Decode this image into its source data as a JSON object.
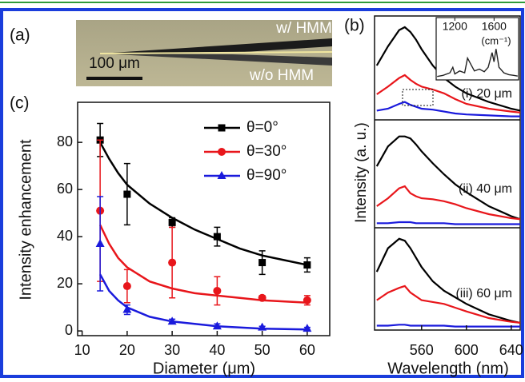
{
  "panel_a": {
    "label": "(a)",
    "top_label": "w/ HMM",
    "bottom_label": "w/o HMM",
    "scale_label": "100 μm"
  },
  "chart_data": [
    {
      "type": "spectra",
      "label": "(b)",
      "xlabel": "Wavelength (nm)",
      "ylabel": "Intensity (a. u.)",
      "xlim": [
        518,
        648
      ],
      "xticks": [
        560,
        600,
        640
      ],
      "ylim": [
        0,
        1.05
      ],
      "x": [
        520,
        530,
        540,
        545,
        550,
        555,
        560,
        570,
        580,
        590,
        600,
        620,
        640,
        648
      ],
      "panels": [
        {
          "label": "(i) 20 μm",
          "series": [
            {
              "color": "#000000",
              "values": [
                0.55,
                0.75,
                0.92,
                0.95,
                0.9,
                0.82,
                0.72,
                0.55,
                0.42,
                0.33,
                0.26,
                0.17,
                0.1,
                0.08
              ]
            },
            {
              "color": "#e8161b",
              "values": [
                0.25,
                0.33,
                0.42,
                0.45,
                0.4,
                0.36,
                0.33,
                0.3,
                0.26,
                0.2,
                0.15,
                0.1,
                0.07,
                0.06
              ]
            },
            {
              "color": "#1a1adc",
              "values": [
                0.08,
                0.1,
                0.15,
                0.17,
                0.14,
                0.12,
                0.1,
                0.09,
                0.07,
                0.05,
                0.04,
                0.03,
                0.02,
                0.02
              ]
            }
          ]
        },
        {
          "label": "(ii) 40 μm",
          "series": [
            {
              "color": "#000000",
              "values": [
                0.6,
                0.8,
                0.9,
                0.9,
                0.88,
                0.82,
                0.75,
                0.63,
                0.52,
                0.42,
                0.34,
                0.2,
                0.1,
                0.07
              ]
            },
            {
              "color": "#e8161b",
              "values": [
                0.2,
                0.28,
                0.38,
                0.4,
                0.33,
                0.3,
                0.28,
                0.27,
                0.25,
                0.22,
                0.18,
                0.12,
                0.08,
                0.07
              ]
            },
            {
              "color": "#1a1adc",
              "values": [
                0.03,
                0.03,
                0.04,
                0.04,
                0.04,
                0.03,
                0.03,
                0.03,
                0.03,
                0.02,
                0.02,
                0.02,
                0.02,
                0.02
              ]
            }
          ]
        },
        {
          "label": "(iii) 60 μm",
          "series": [
            {
              "color": "#000000",
              "values": [
                0.6,
                0.85,
                0.95,
                0.93,
                0.85,
                0.75,
                0.65,
                0.5,
                0.4,
                0.33,
                0.26,
                0.15,
                0.08,
                0.06
              ]
            },
            {
              "color": "#e8161b",
              "values": [
                0.3,
                0.38,
                0.43,
                0.45,
                0.38,
                0.34,
                0.3,
                0.28,
                0.26,
                0.22,
                0.18,
                0.11,
                0.07,
                0.06
              ]
            },
            {
              "color": "#1a1adc",
              "values": [
                0.03,
                0.03,
                0.04,
                0.04,
                0.03,
                0.03,
                0.03,
                0.03,
                0.03,
                0.02,
                0.02,
                0.02,
                0.02,
                0.02
              ]
            }
          ]
        }
      ],
      "inset": {
        "xlabel": "(cm⁻¹)",
        "xlim": [
          1010,
          1850
        ],
        "xticks": [
          1200,
          1600
        ],
        "ylim": [
          0,
          1
        ],
        "x": [
          1020,
          1080,
          1150,
          1180,
          1200,
          1250,
          1300,
          1330,
          1370,
          1400,
          1450,
          1500,
          1540,
          1580,
          1600,
          1620,
          1650,
          1700,
          1750,
          1800,
          1840
        ],
        "values": [
          0.05,
          0.08,
          0.15,
          0.3,
          0.12,
          0.2,
          0.15,
          0.55,
          0.35,
          0.2,
          0.25,
          0.18,
          0.3,
          0.7,
          0.45,
          0.8,
          0.3,
          0.15,
          0.1,
          0.08,
          0.06
        ]
      }
    },
    {
      "type": "scatter",
      "label": "(c)",
      "xlabel": "Diameter (μm)",
      "ylabel": "Intensity enhancement",
      "xlim": [
        9,
        65
      ],
      "xticks": [
        10,
        20,
        30,
        40,
        50,
        60
      ],
      "ylim": [
        -2,
        97
      ],
      "yticks": [
        0,
        20,
        40,
        60,
        80
      ],
      "legend": "upper right",
      "x": [
        14,
        20,
        30,
        40,
        50,
        60
      ],
      "fit_x": [
        14,
        16,
        18,
        20,
        25,
        30,
        35,
        40,
        45,
        50,
        55,
        60
      ],
      "series": [
        {
          "name": "θ=0°",
          "color": "#000000",
          "marker": "square",
          "values": [
            81,
            58,
            46,
            40,
            29,
            28
          ],
          "errors": [
            7,
            13,
            2,
            4,
            5,
            3
          ],
          "fit": [
            80,
            73,
            67,
            62,
            54,
            48,
            43,
            39,
            35,
            32,
            30,
            28
          ]
        },
        {
          "name": "θ=30°",
          "color": "#e8161b",
          "marker": "circle",
          "values": [
            51,
            19,
            29,
            17,
            14,
            13
          ],
          "errors": [
            30,
            7,
            15,
            6,
            1,
            2
          ],
          "fit": [
            45,
            37,
            31,
            27,
            21,
            18,
            16,
            15,
            14,
            13,
            12.5,
            12
          ]
        },
        {
          "name": "θ=90°",
          "color": "#1a1adc",
          "marker": "triangle",
          "values": [
            37,
            9,
            4,
            2,
            1.5,
            1
          ],
          "errors": [
            20,
            2,
            1,
            1,
            0.5,
            0.5
          ],
          "fit": [
            24,
            17,
            13,
            10,
            6,
            4,
            3,
            2,
            1.5,
            1,
            0.8,
            0.6
          ]
        }
      ]
    }
  ]
}
